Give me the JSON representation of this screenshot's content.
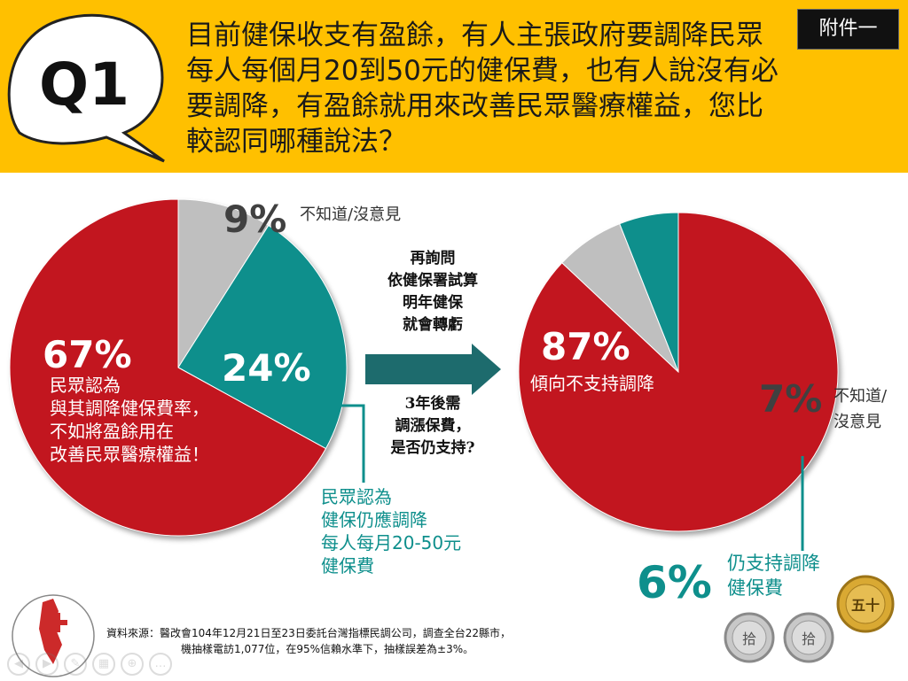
{
  "header": {
    "badge": "Q1",
    "question": "目前健保收支有盈餘，有人主張政府要調降民眾每人每個月20到50元的健保費，也有人說沒有必要調降，有盈餘就用來改善民眾醫療權益，您比較認同哪種說法？",
    "attachment": "附件一"
  },
  "middle": {
    "line1": "再詢問",
    "line2": "依健保署試算",
    "line3": "明年健保",
    "line4": "就會轉虧",
    "line5": "3年後需",
    "line6": "調漲保費，",
    "line7": "是否仍支持?"
  },
  "chart_data": [
    {
      "type": "pie",
      "slices": [
        {
          "value": 67,
          "label": "67%",
          "description": [
            "民眾認為",
            "與其調降健保費率，",
            "不如將盈餘用在",
            "改善民眾醫療權益！"
          ],
          "color": "#c2161f"
        },
        {
          "value": 9,
          "label": "9%",
          "description": [
            "不知道/沒意見"
          ],
          "color": "#bfbfbf"
        },
        {
          "value": 24,
          "label": "24%",
          "description": [
            "民眾認為",
            "健保仍應調降",
            "每人每月20-50元",
            "健保費"
          ],
          "color": "#0e8f8c"
        }
      ]
    },
    {
      "type": "pie",
      "slices": [
        {
          "value": 87,
          "label": "87%",
          "description": [
            "傾向不支持調降"
          ],
          "color": "#c2161f"
        },
        {
          "value": 7,
          "label": "7%",
          "description": [
            "不知道/",
            "沒意見"
          ],
          "color": "#bfbfbf"
        },
        {
          "value": 6,
          "label": "6%",
          "description": [
            "仍支持調降",
            "健保費"
          ],
          "color": "#0e8f8c"
        }
      ]
    }
  ],
  "source": {
    "line1": "資料來源：醫改會104年12月21日至23日委託台灣指標民調公司，調查全台22縣市，",
    "line2": "機抽樣電訪1,077位，在95%信賴水準下，抽樣誤差為±3%。"
  },
  "coins": [
    "拾",
    "拾",
    "五十"
  ],
  "colors": {
    "header": "#ffc000",
    "red": "#c2161f",
    "teal": "#0e8f8c",
    "gray": "#bfbfbf"
  }
}
